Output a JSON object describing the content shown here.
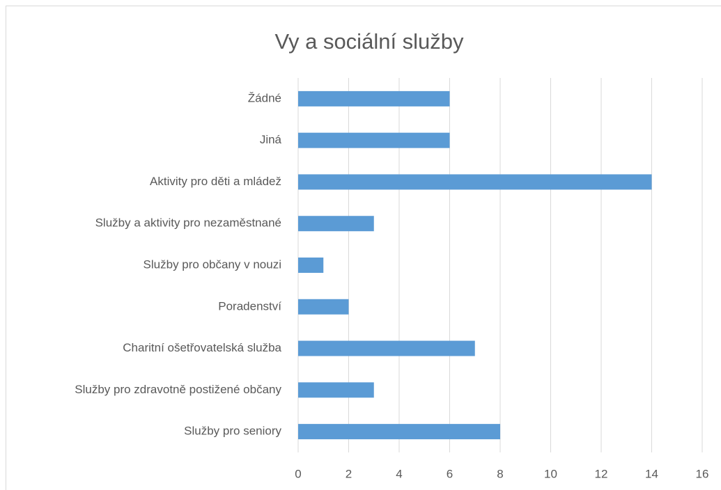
{
  "chart_data": {
    "type": "barh",
    "title": "Vy a sociální služby",
    "categories": [
      "Žádné",
      "Jiná",
      "Aktivity pro děti a mládež",
      "Služby a aktivity pro nezaměstnané",
      "Služby pro občany v nouzi",
      "Poradenství",
      "Charitní ošetřovatelská služba",
      "Služby pro zdravotně postižené občany",
      "Služby pro seniory"
    ],
    "values": [
      6,
      6,
      14,
      3,
      1,
      2,
      7,
      3,
      8
    ],
    "color": "#5b9bd5",
    "xlim": [
      0,
      16
    ],
    "xticks": [
      0,
      2,
      4,
      6,
      8,
      10,
      12,
      14,
      16
    ],
    "grid": true
  }
}
